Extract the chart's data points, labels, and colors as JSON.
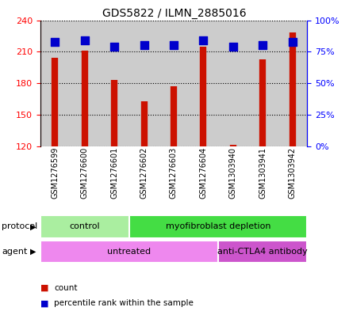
{
  "title": "GDS5822 / ILMN_2885016",
  "samples": [
    "GSM1276599",
    "GSM1276600",
    "GSM1276601",
    "GSM1276602",
    "GSM1276603",
    "GSM1276604",
    "GSM1303940",
    "GSM1303941",
    "GSM1303942"
  ],
  "counts": [
    204,
    211,
    183,
    163,
    177,
    215,
    121,
    203,
    228
  ],
  "percentiles": [
    83,
    84,
    79,
    80,
    80,
    84,
    79,
    80,
    83
  ],
  "ylim_left": [
    120,
    240
  ],
  "ylim_right": [
    0,
    100
  ],
  "yticks_left": [
    120,
    150,
    180,
    210,
    240
  ],
  "yticks_right": [
    0,
    25,
    50,
    75,
    100
  ],
  "protocol_groups": [
    {
      "label": "control",
      "start": 0,
      "end": 3,
      "color": "#aaeea0"
    },
    {
      "label": "myofibroblast depletion",
      "start": 3,
      "end": 9,
      "color": "#44dd44"
    }
  ],
  "agent_groups": [
    {
      "label": "untreated",
      "start": 0,
      "end": 6,
      "color": "#ee88ee"
    },
    {
      "label": "anti-CTLA4 antibody",
      "start": 6,
      "end": 9,
      "color": "#cc55cc"
    }
  ],
  "bar_color": "#cc1100",
  "dot_color": "#0000cc",
  "bg_color": "#cccccc",
  "dot_size": 50,
  "title_fontsize": 10,
  "tick_fontsize": 8,
  "label_fontsize": 8,
  "sample_fontsize": 7
}
